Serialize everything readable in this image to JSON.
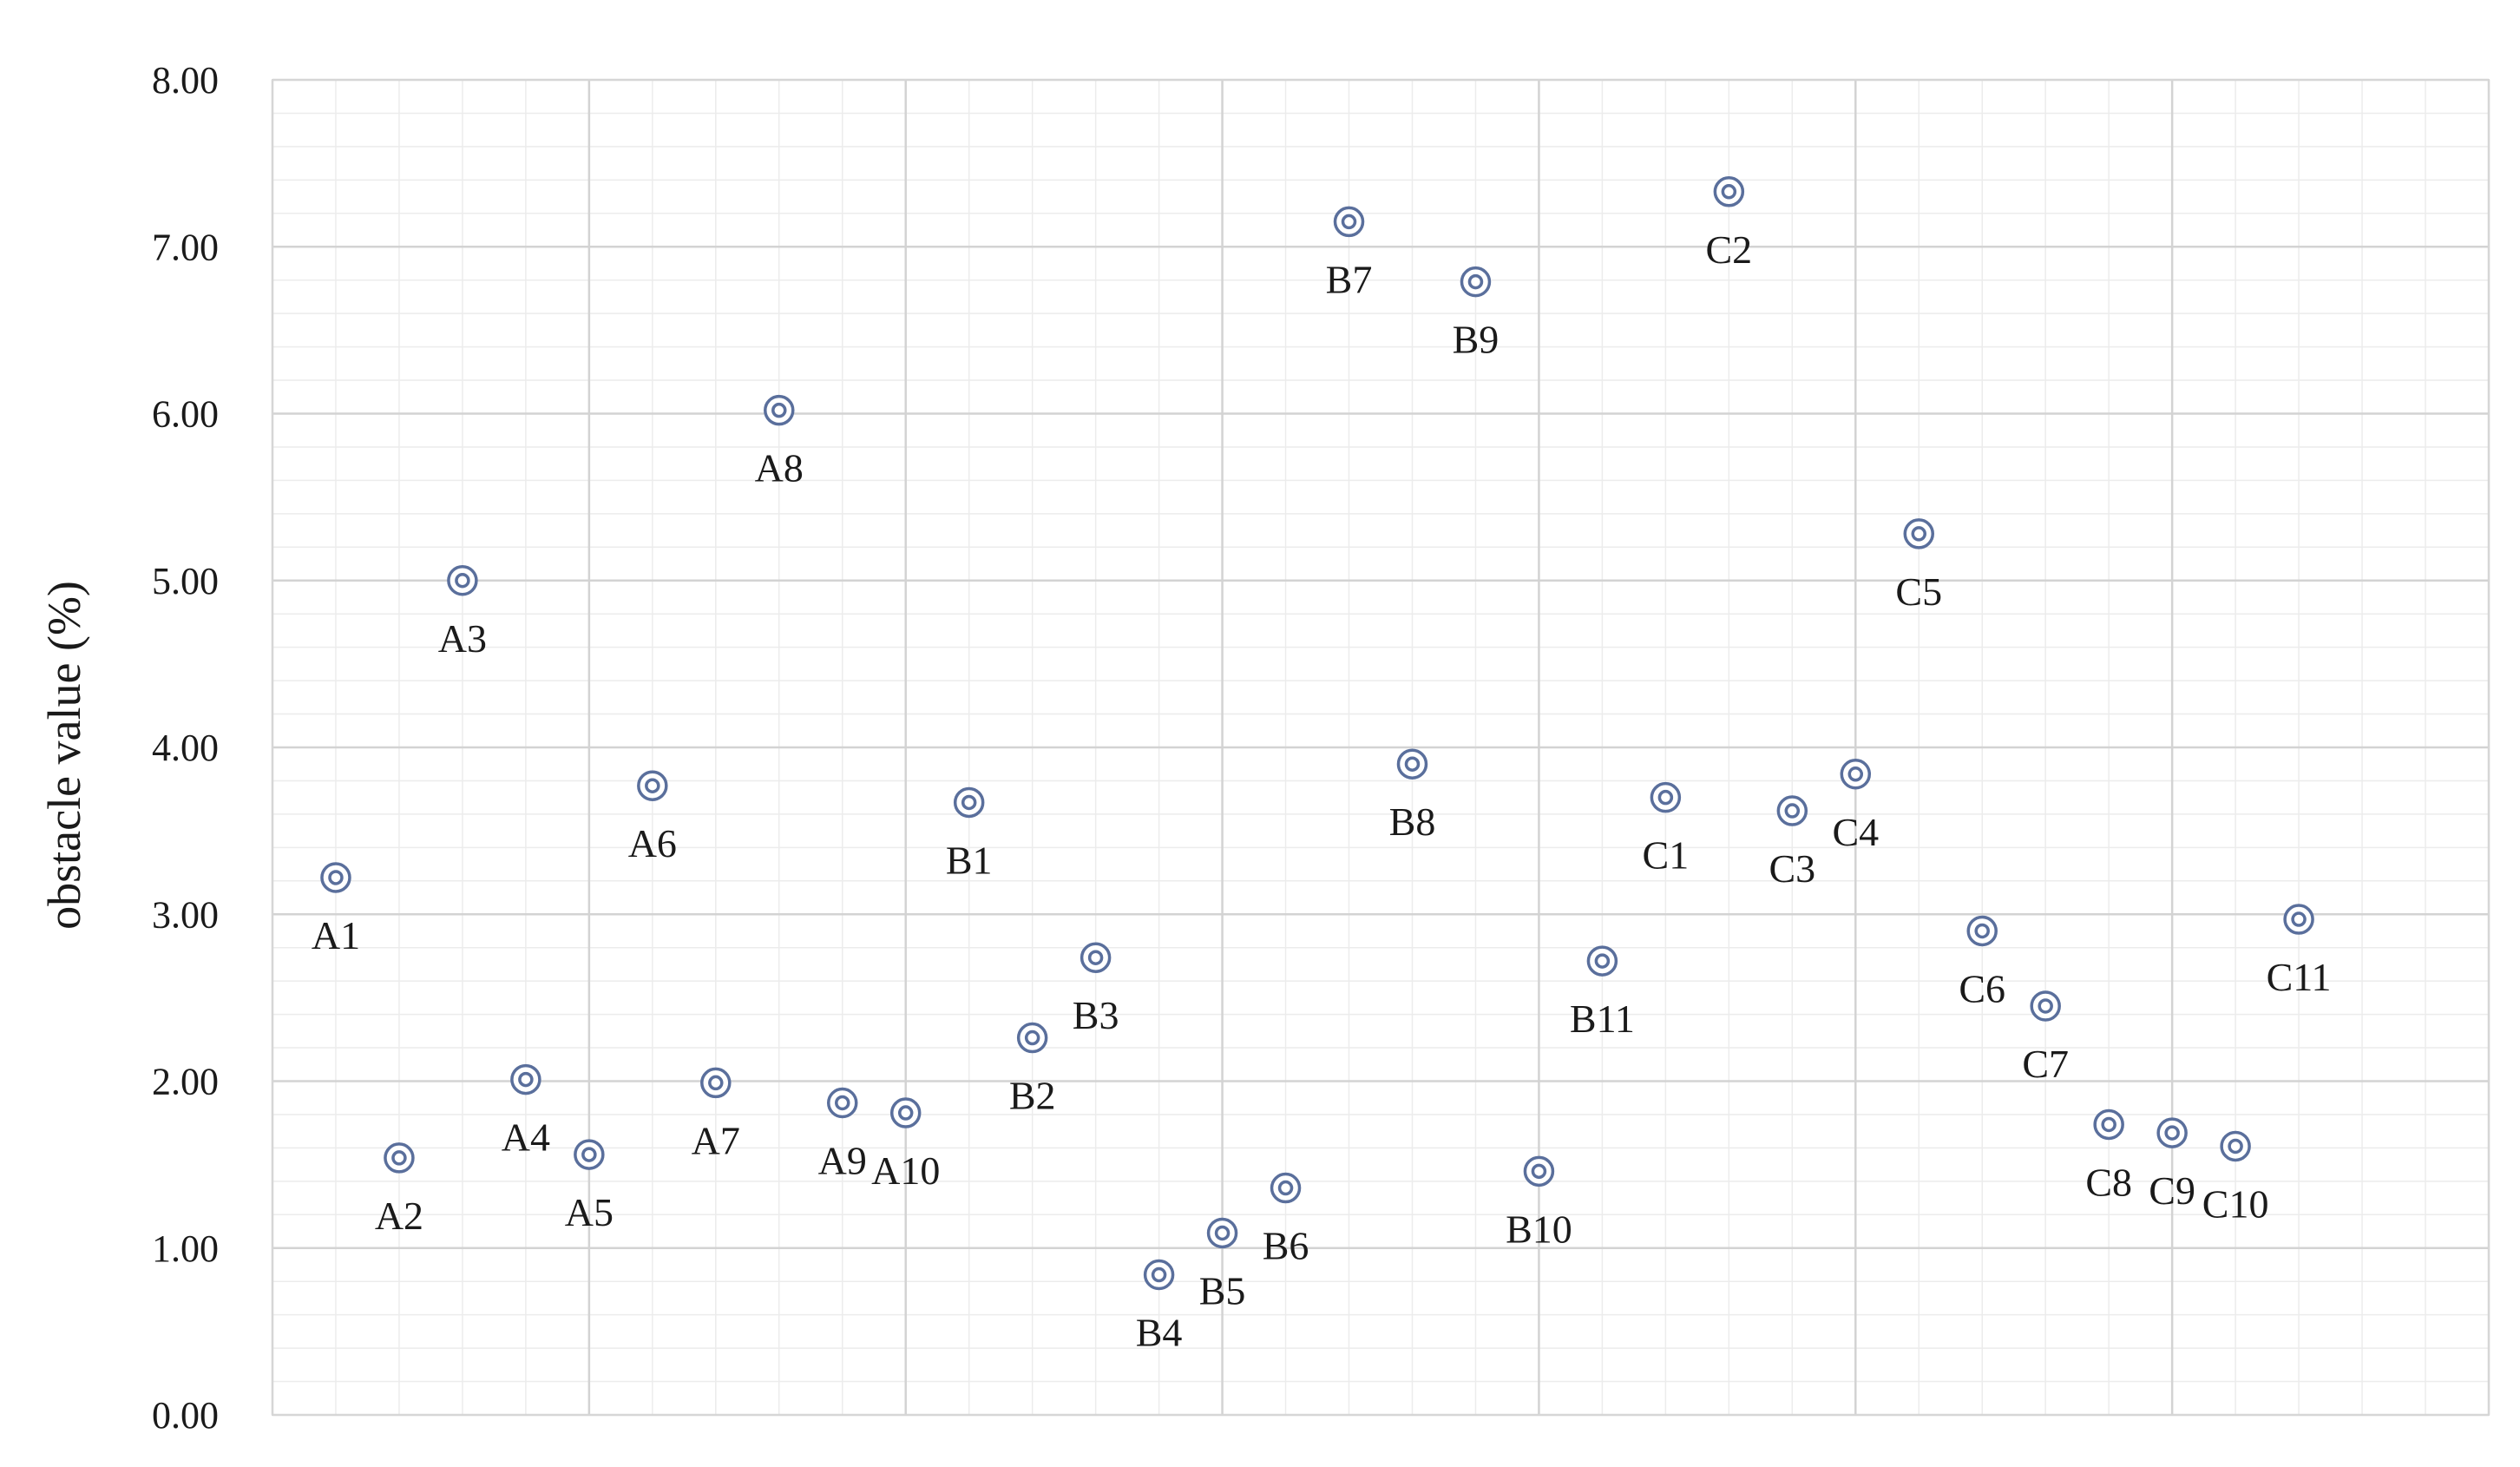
{
  "chart_data": {
    "type": "scatter",
    "title": "",
    "xlabel": "",
    "ylabel": "obstacle  value (%)",
    "ylim": [
      0,
      8
    ],
    "yticks": [
      "0.00",
      "1.00",
      "2.00",
      "3.00",
      "4.00",
      "5.00",
      "6.00",
      "7.00",
      "8.00"
    ],
    "xlim": [
      0,
      35
    ],
    "grid": true,
    "legend": "none",
    "marker_color": "#5a6f9c",
    "points": [
      {
        "label": "A1",
        "x": 1,
        "y": 3.22
      },
      {
        "label": "A2",
        "x": 2,
        "y": 1.54
      },
      {
        "label": "A3",
        "x": 3,
        "y": 5.0
      },
      {
        "label": "A4",
        "x": 4,
        "y": 2.01
      },
      {
        "label": "A5",
        "x": 5,
        "y": 1.56
      },
      {
        "label": "A6",
        "x": 6,
        "y": 3.77
      },
      {
        "label": "A7",
        "x": 7,
        "y": 1.99
      },
      {
        "label": "A8",
        "x": 8,
        "y": 6.02
      },
      {
        "label": "A9",
        "x": 9,
        "y": 1.87
      },
      {
        "label": "A10",
        "x": 10,
        "y": 1.81
      },
      {
        "label": "B1",
        "x": 11,
        "y": 3.67
      },
      {
        "label": "B2",
        "x": 12,
        "y": 2.26
      },
      {
        "label": "B3",
        "x": 13,
        "y": 2.74
      },
      {
        "label": "B4",
        "x": 14,
        "y": 0.84
      },
      {
        "label": "B5",
        "x": 15,
        "y": 1.09
      },
      {
        "label": "B6",
        "x": 16,
        "y": 1.36
      },
      {
        "label": "B7",
        "x": 17,
        "y": 7.15
      },
      {
        "label": "B8",
        "x": 18,
        "y": 3.9
      },
      {
        "label": "B9",
        "x": 19,
        "y": 6.79
      },
      {
        "label": "B10",
        "x": 20,
        "y": 1.46
      },
      {
        "label": "B11",
        "x": 21,
        "y": 2.72
      },
      {
        "label": "C1",
        "x": 22,
        "y": 3.7
      },
      {
        "label": "C2",
        "x": 23,
        "y": 7.33
      },
      {
        "label": "C3",
        "x": 24,
        "y": 3.62
      },
      {
        "label": "C4",
        "x": 25,
        "y": 3.84
      },
      {
        "label": "C5",
        "x": 26,
        "y": 5.28
      },
      {
        "label": "C6",
        "x": 27,
        "y": 2.9
      },
      {
        "label": "C7",
        "x": 28,
        "y": 2.45
      },
      {
        "label": "C8",
        "x": 29,
        "y": 1.74
      },
      {
        "label": "C9",
        "x": 30,
        "y": 1.69
      },
      {
        "label": "C10",
        "x": 31,
        "y": 1.61
      },
      {
        "label": "C11",
        "x": 32,
        "y": 2.97
      }
    ]
  }
}
